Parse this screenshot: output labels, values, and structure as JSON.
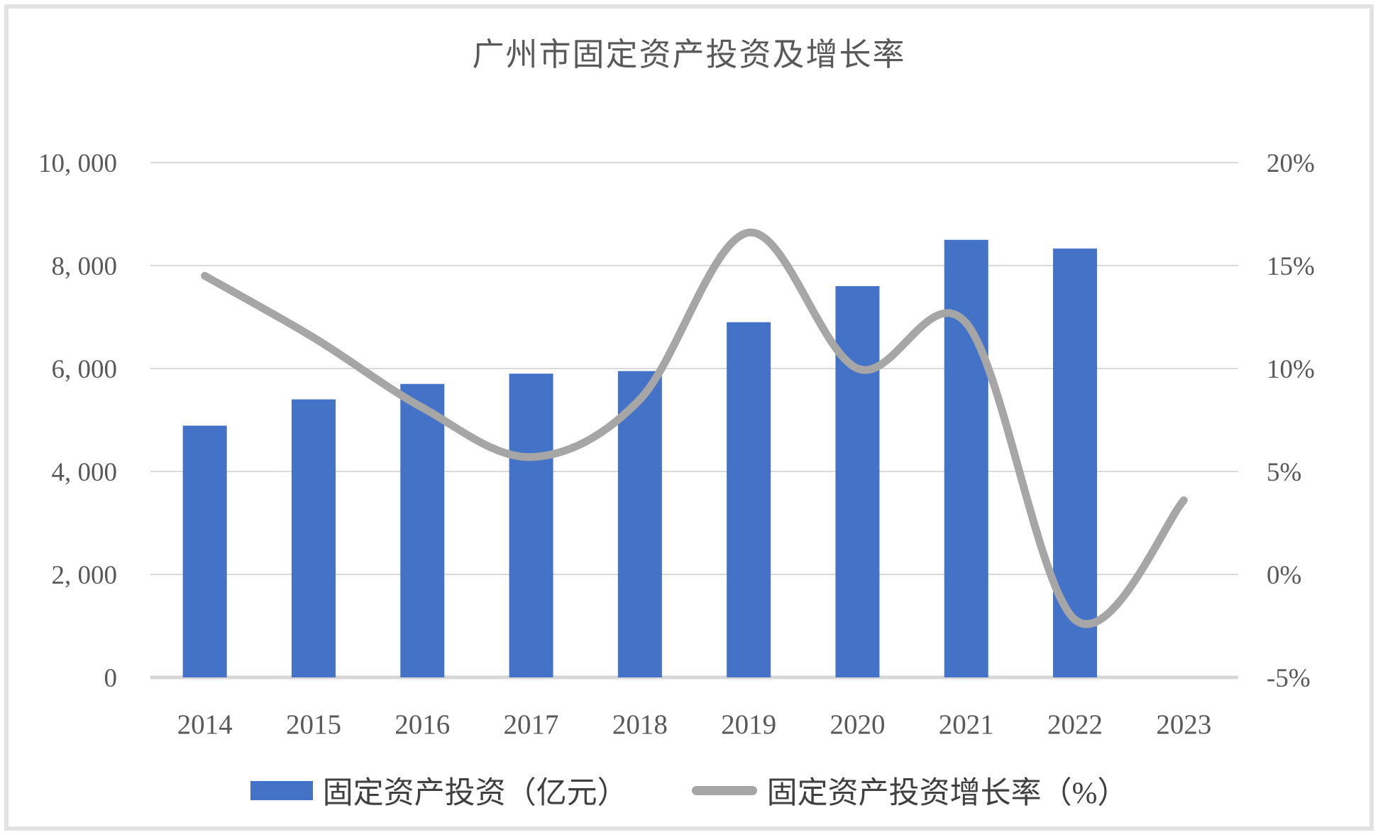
{
  "chart_data": {
    "type": "combo-bar-line",
    "title": "广州市固定资产投资及增长率",
    "categories": [
      "2014",
      "2015",
      "2016",
      "2017",
      "2018",
      "2019",
      "2020",
      "2021",
      "2022",
      "2023"
    ],
    "series": [
      {
        "name": "固定资产投资（亿元）",
        "type": "bar",
        "axis": "left",
        "color": "#4472c6",
        "values": [
          4890,
          5400,
          5700,
          5900,
          5950,
          6900,
          7600,
          8500,
          8330,
          null
        ]
      },
      {
        "name": "固定资产投资增长率（%）",
        "type": "line",
        "axis": "right",
        "color": "#a6a6a6",
        "values": [
          14.5,
          11.5,
          8.1,
          5.7,
          8.5,
          16.6,
          10.0,
          12.2,
          -2.2,
          3.6
        ]
      }
    ],
    "left_axis": {
      "ticks": [
        "10, 000",
        "8, 000",
        "6, 000",
        "4, 000",
        "2, 000",
        "0"
      ],
      "min": 0,
      "max": 10000
    },
    "right_axis": {
      "ticks": [
        "20%",
        "15%",
        "10%",
        "5%",
        "0%",
        "-5%"
      ],
      "min": -5,
      "max": 20
    },
    "grid": true,
    "legend_position": "bottom",
    "colors": {
      "bar": "#4472c6",
      "line": "#a6a6a6",
      "text": "#595959",
      "gridline": "#d9d9d9",
      "axis_line": "#d6d6d6",
      "frame": "#e2e2e2"
    }
  },
  "legend": {
    "bar_label": "固定资产投资（亿元）",
    "line_label": "固定资产投资增长率（%）"
  }
}
